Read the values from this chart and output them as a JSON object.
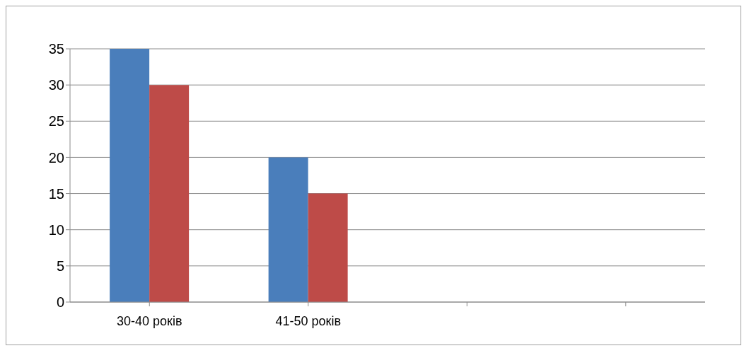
{
  "chart_data": {
    "type": "bar",
    "categories": [
      "30-40 років",
      "41-50 років",
      null,
      null
    ],
    "series": [
      {
        "color": "#4a7ebb",
        "values": [
          35,
          20,
          null,
          null
        ]
      },
      {
        "color": "#be4b48",
        "values": [
          30,
          15,
          null,
          null
        ]
      }
    ],
    "ylim": [
      0,
      35
    ],
    "yticks": [
      0,
      5,
      10,
      15,
      20,
      25,
      30,
      35
    ],
    "grid": "y"
  }
}
